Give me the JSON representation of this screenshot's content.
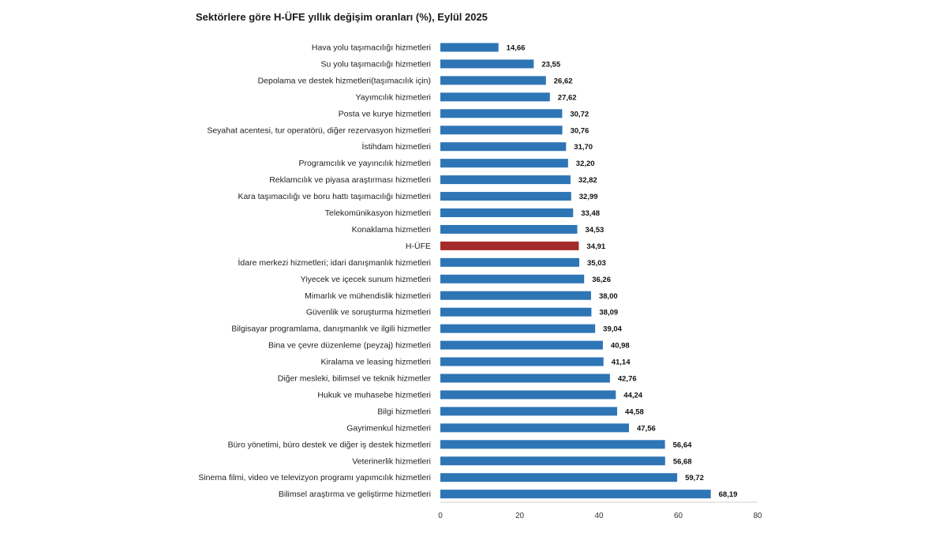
{
  "chart_data": {
    "type": "bar",
    "orientation": "horizontal",
    "title": "Sektörlere göre H-ÜFE yıllık değişim oranları (%), Eylül 2025",
    "xlabel": "",
    "ylabel": "",
    "xlim": [
      0,
      80
    ],
    "xticks": [
      "0",
      "20",
      "40",
      "60",
      "80"
    ],
    "grid": false,
    "colors": {
      "default": "#2e75b6",
      "highlight": "#a52a2a"
    },
    "highlight_category": "H-ÜFE",
    "categories": [
      "Hava yolu taşımacılığı hizmetleri",
      "Su yolu taşımacılığı hizmetleri",
      "Depolama ve destek hizmetleri(taşımacılık için)",
      "Yayımcılık hizmetleri",
      "Posta ve kurye hizmetleri",
      "Seyahat acentesi, tur operatörü, diğer rezervasyon hizmetleri",
      "İstihdam hizmetleri",
      "Programcılık ve yayıncılık hizmetleri",
      "Reklamcılık ve piyasa araştırması hizmetleri",
      "Kara taşımacılığı ve boru hattı taşımacılığı hizmetleri",
      "Telekomünikasyon hizmetleri",
      "Konaklama hizmetleri",
      "H-ÜFE",
      "İdare merkezi hizmetleri; idari danışmanlık hizmetleri",
      "Yiyecek ve içecek sunum hizmetleri",
      "Mimarlık ve mühendislik hizmetleri",
      "Güvenlik ve soruşturma hizmetleri",
      "Bilgisayar programlama, danışmanlık ve ilgili hizmetler",
      "Bina ve çevre düzenleme (peyzaj) hizmetleri",
      "Kiralama ve leasing hizmetleri",
      "Diğer mesleki, bilimsel ve teknik hizmetler",
      "Hukuk ve muhasebe hizmetleri",
      "Bilgi hizmetleri",
      "Gayrimenkul hizmetleri",
      "Büro yönetimi, büro destek ve diğer iş destek hizmetleri",
      "Veterinerlik hizmetleri",
      "Sinema filmi, video ve televizyon programı yapımcılık hizmetleri",
      "Bilimsel araştırma ve geliştirme hizmetleri"
    ],
    "values": [
      14.66,
      23.55,
      26.62,
      27.62,
      30.72,
      30.76,
      31.7,
      32.2,
      32.82,
      32.99,
      33.48,
      34.53,
      34.91,
      35.03,
      36.26,
      38.0,
      38.09,
      39.04,
      40.98,
      41.14,
      42.76,
      44.24,
      44.58,
      47.56,
      56.64,
      56.68,
      59.72,
      68.19
    ],
    "value_labels": [
      "14,66",
      "23,55",
      "26,62",
      "27,62",
      "30,72",
      "30,76",
      "31,70",
      "32,20",
      "32,82",
      "32,99",
      "33,48",
      "34,53",
      "34,91",
      "35,03",
      "36,26",
      "38,00",
      "38,09",
      "39,04",
      "40,98",
      "41,14",
      "42,76",
      "44,24",
      "44,58",
      "47,56",
      "56,64",
      "56,68",
      "59,72",
      "68,19"
    ]
  }
}
